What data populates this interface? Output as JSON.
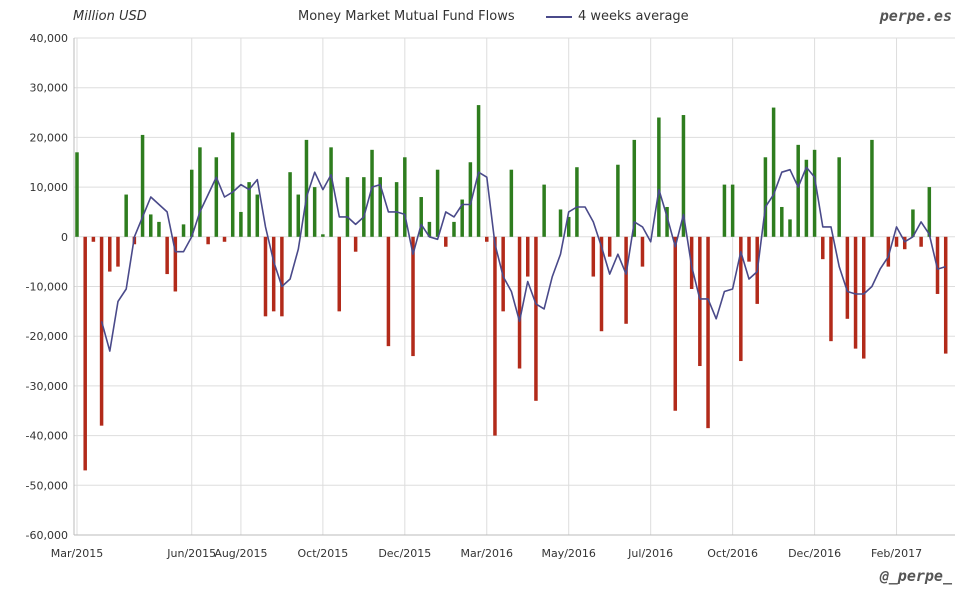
{
  "header": {
    "unit_label": "Million USD",
    "brand": "perpe.es",
    "handle": "@_perpe_"
  },
  "chart_data": {
    "type": "bar",
    "title": "Money Market Mutual Fund Flows",
    "legend": [
      "4 weeks average"
    ],
    "ylabel": "Million USD",
    "ylim": [
      -60000,
      40000
    ],
    "grid": true,
    "y_ticks": [
      {
        "value": 40000,
        "label": "40,000"
      },
      {
        "value": 30000,
        "label": "30,000"
      },
      {
        "value": 20000,
        "label": "20,000"
      },
      {
        "value": 10000,
        "label": "10,000"
      },
      {
        "value": 0,
        "label": "0"
      },
      {
        "value": -10000,
        "label": "-10,000"
      },
      {
        "value": -20000,
        "label": "-20,000"
      },
      {
        "value": -30000,
        "label": "-30,000"
      },
      {
        "value": -40000,
        "label": "-40,000"
      },
      {
        "value": -50000,
        "label": "-50,000"
      },
      {
        "value": -60000,
        "label": "-60,000"
      }
    ],
    "x_ticks": [
      {
        "week": 0,
        "label": "Mar/2015"
      },
      {
        "week": 14,
        "label": "Jun/2015"
      },
      {
        "week": 20,
        "label": "Aug/2015"
      },
      {
        "week": 30,
        "label": "Oct/2015"
      },
      {
        "week": 40,
        "label": "Dec/2015"
      },
      {
        "week": 50,
        "label": "Mar/2016"
      },
      {
        "week": 60,
        "label": "May/2016"
      },
      {
        "week": 70,
        "label": "Jul/2016"
      },
      {
        "week": 80,
        "label": "Oct/2016"
      },
      {
        "week": 90,
        "label": "Dec/2016"
      },
      {
        "week": 100,
        "label": "Feb/2017"
      }
    ],
    "colors": {
      "positive": "#2e7d1e",
      "negative": "#b22a1a",
      "average": "#4a4a8a",
      "grid": "#dddddd"
    },
    "series": [
      {
        "name": "Weekly flows",
        "values": [
          17000,
          -47000,
          -1000,
          -38000,
          -7000,
          -6000,
          8500,
          -1500,
          20500,
          4500,
          3000,
          -7500,
          -11000,
          2500,
          13500,
          18000,
          -1500,
          16000,
          -1000,
          21000,
          5000,
          11000,
          8500,
          -16000,
          -15000,
          -16000,
          13000,
          8500,
          19500,
          10000,
          500,
          18000,
          -15000,
          12000,
          -3000,
          12000,
          17500,
          12000,
          -22000,
          11000,
          16000,
          -24000,
          8000,
          3000,
          13500,
          -2000,
          3000,
          7500,
          15000,
          26500,
          -1000,
          -40000,
          -15000,
          13500,
          -26500,
          -8000,
          -33000,
          10500,
          0,
          5500,
          4000,
          14000,
          0,
          -8000,
          -19000,
          -4000,
          14500,
          -17500,
          19500,
          -6000,
          0,
          24000,
          6000,
          -35000,
          24500,
          -10500,
          -26000,
          -38500,
          0,
          10500,
          10500,
          -25000,
          -5000,
          -13500,
          16000,
          26000,
          6000,
          3500,
          18500,
          15500,
          17500,
          -4500,
          -21000,
          16000,
          -16500,
          -22500,
          -24500,
          19500,
          0,
          -6000,
          -2000,
          -2500,
          5500,
          -2000,
          10000,
          -11500,
          -23500
        ]
      },
      {
        "name": "4 weeks average",
        "values": [
          null,
          null,
          null,
          -17000,
          -23000,
          -13000,
          -10500,
          0,
          4000,
          8000,
          6500,
          5000,
          -3000,
          -3000,
          0,
          5000,
          8500,
          12000,
          8000,
          9000,
          10500,
          9500,
          11500,
          2000,
          -5000,
          -10000,
          -8500,
          -2500,
          8000,
          13000,
          9500,
          12500,
          4000,
          4000,
          2500,
          4000,
          10000,
          10500,
          5000,
          5000,
          4500,
          -3500,
          2500,
          0,
          -500,
          5000,
          4000,
          6500,
          6500,
          13000,
          12000,
          -1500,
          -8000,
          -11000,
          -17000,
          -9000,
          -13500,
          -14500,
          -8000,
          -3500,
          5000,
          6000,
          6000,
          3000,
          -2000,
          -7500,
          -3500,
          -7500,
          3000,
          2000,
          -1000,
          9500,
          4000,
          -2000,
          4500,
          -6000,
          -12500,
          -12500,
          -16500,
          -11000,
          -10500,
          -3000,
          -8500,
          -7000,
          6000,
          8500,
          13000,
          13500,
          10000,
          14000,
          12000,
          2000,
          2000,
          -6000,
          -11000,
          -11500,
          -11500,
          -10000,
          -6500,
          -4000,
          2000,
          -1000,
          0,
          3000,
          500,
          -6500,
          -6000
        ]
      }
    ]
  }
}
